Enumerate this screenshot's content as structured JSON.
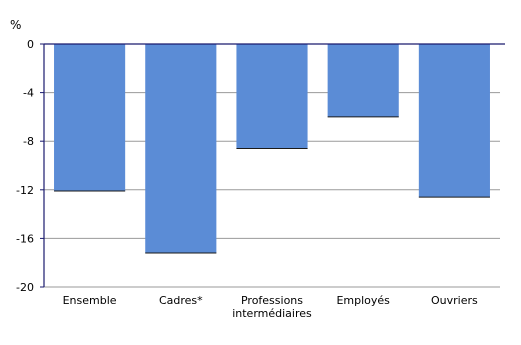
{
  "chart_data": {
    "type": "bar",
    "ylabel": "%",
    "categories": [
      "Ensemble",
      "Cadres*",
      "Professions intermédiaires",
      "Employés",
      "Ouvriers"
    ],
    "values": [
      -12.1,
      -17.2,
      -8.6,
      -6.0,
      -12.6
    ],
    "ylim": [
      -20,
      0
    ],
    "yticks": [
      0,
      -4,
      -8,
      -12,
      -16,
      -20
    ],
    "grid": true,
    "legend": "none",
    "colors": {
      "bar": "#5b8cd6",
      "bar_edge": "#1a1a1a",
      "gridline": "#9a9a9a",
      "axis": "#1a1a6e"
    }
  }
}
